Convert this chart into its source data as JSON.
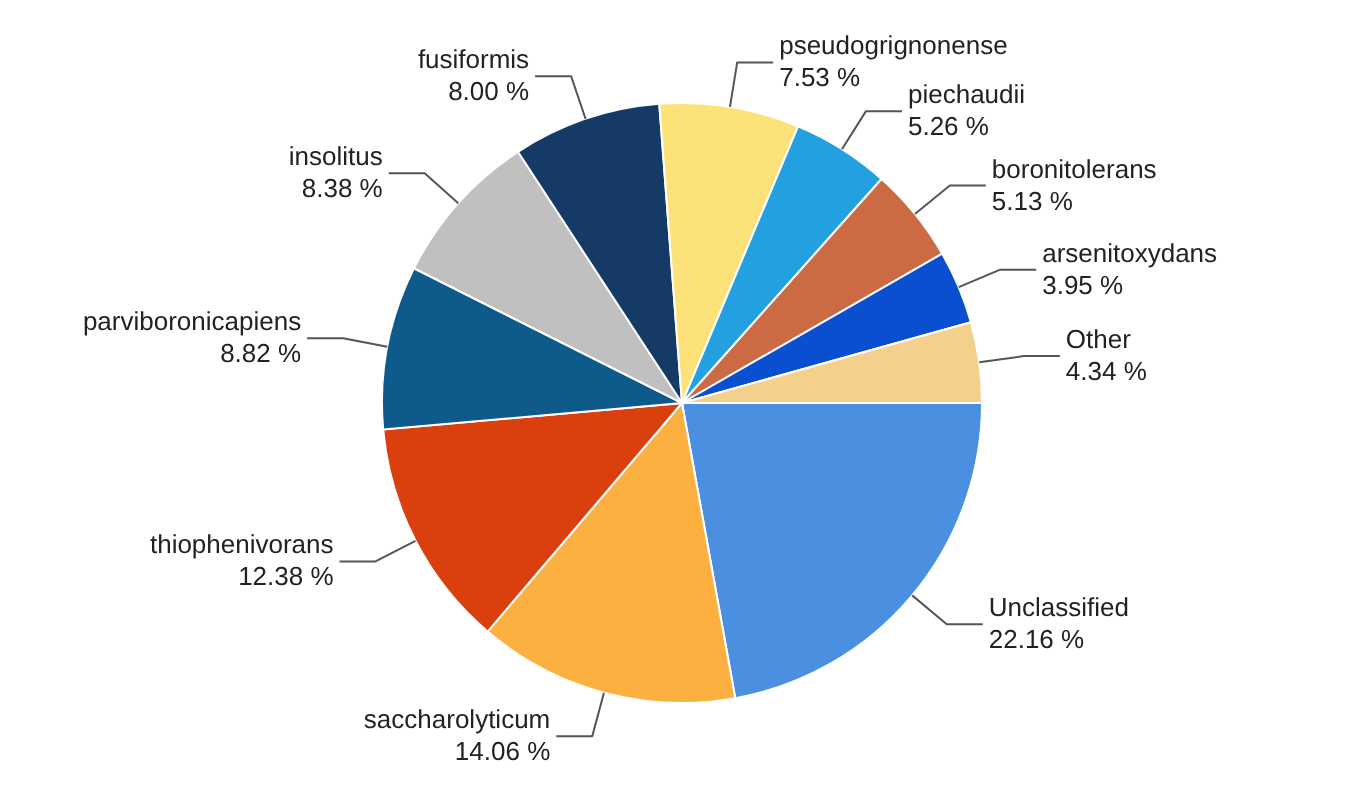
{
  "chart_data": {
    "type": "pie",
    "categories": [
      "Unclassified",
      "saccharolyticum",
      "thiophenivorans",
      "parviboronicapiens",
      "insolitus",
      "fusiformis",
      "pseudogrignonense",
      "piechaudii",
      "boronitolerans",
      "arsenitoxydans",
      "Other"
    ],
    "values": [
      22.16,
      14.06,
      12.38,
      8.82,
      8.38,
      8.0,
      7.53,
      5.26,
      5.13,
      3.95,
      4.34
    ],
    "value_labels": [
      "22.16 %",
      "14.06 %",
      "12.38 %",
      "8.82 %",
      "8.38 %",
      "8.00 %",
      "7.53 %",
      "5.26 %",
      "5.13 %",
      "3.95 %",
      "4.34 %"
    ],
    "colors": [
      "#4a8fe0",
      "#fbb040",
      "#d9400e",
      "#0e5a8a",
      "#c0c0c0",
      "#163a66",
      "#fde27a",
      "#22a0e0",
      "#cc6a44",
      "#0a4fd0",
      "#f3d08c"
    ]
  }
}
